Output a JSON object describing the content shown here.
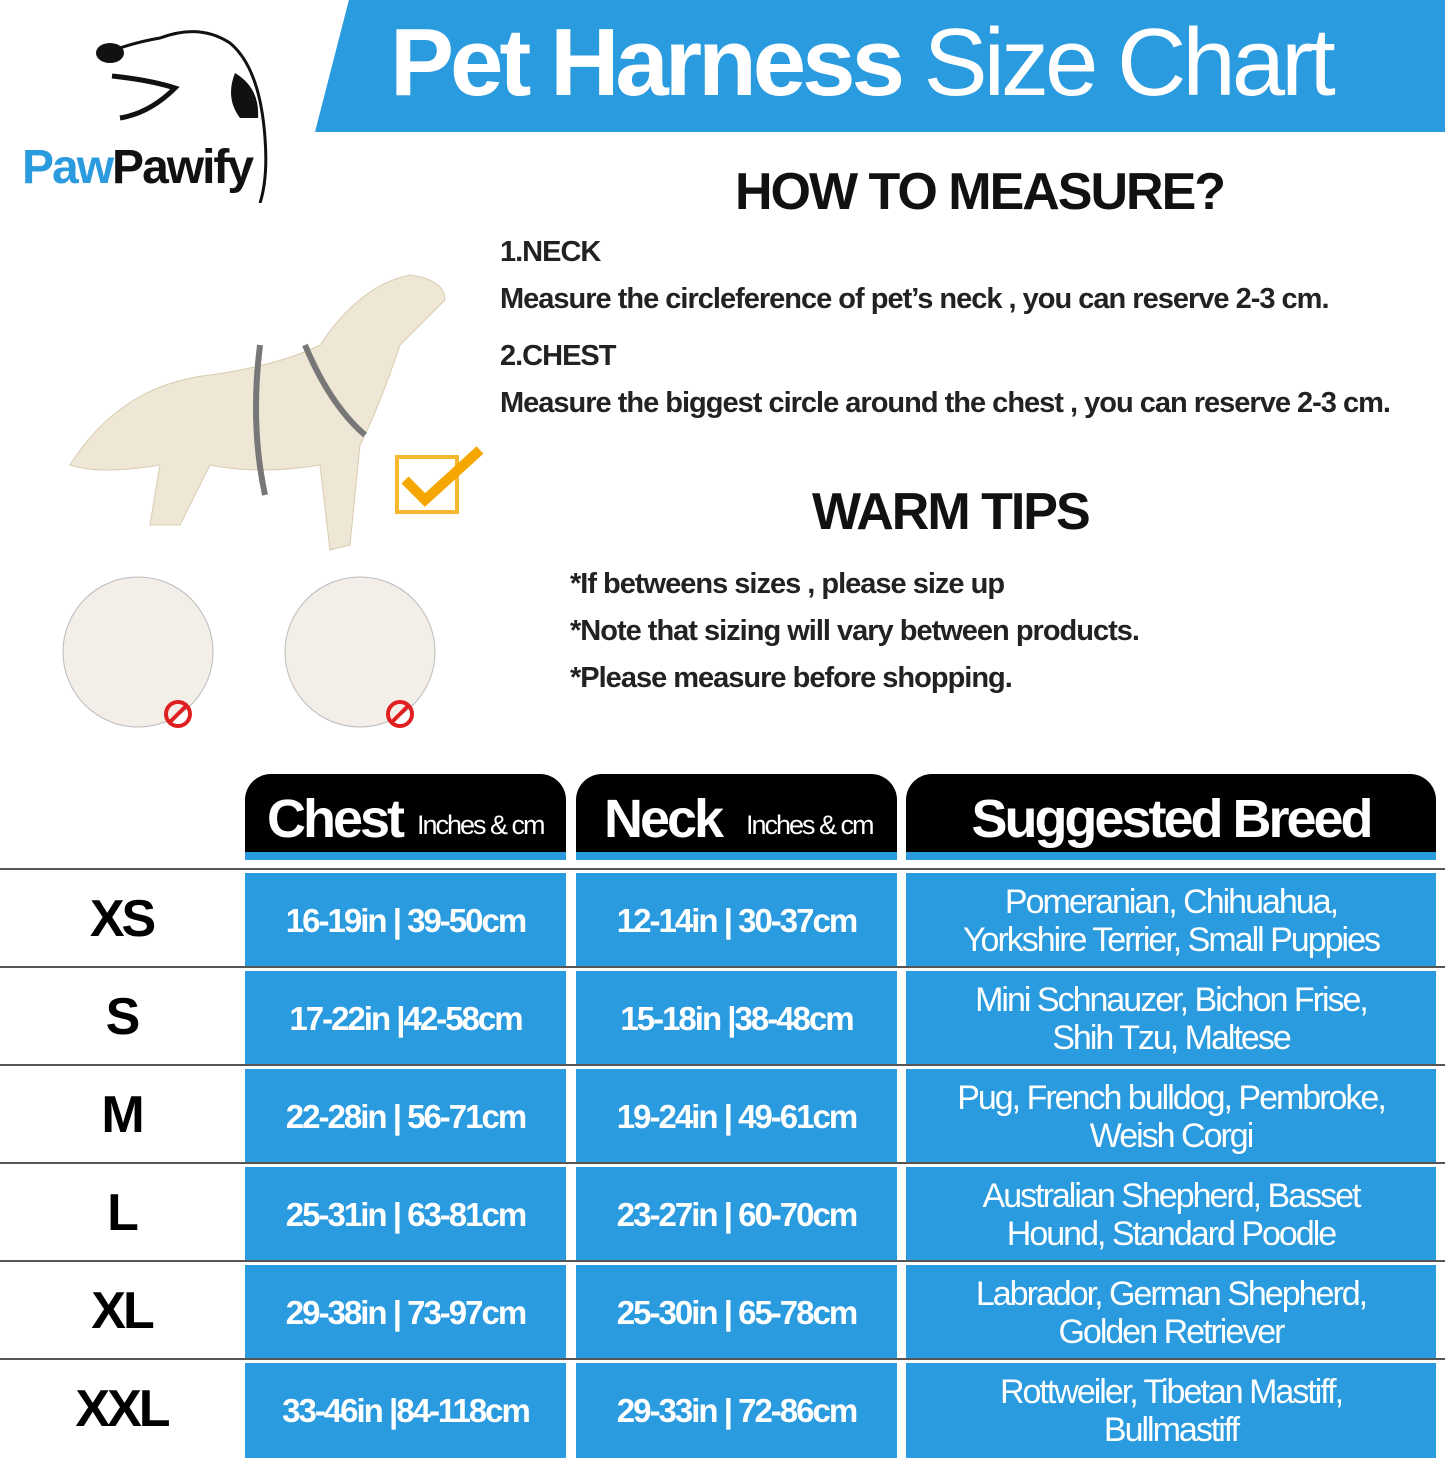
{
  "brand": {
    "part1": "Paw",
    "part2": "Pawify",
    "color1": "#2b9be0",
    "color2": "#111111"
  },
  "title": {
    "bold": "Pet Harness",
    "light": "Size Chart"
  },
  "colors": {
    "accent": "#2b9be0",
    "header": "#000000"
  },
  "measure": {
    "heading": "HOW TO MEASURE?",
    "neck_label": "1.NECK",
    "neck_text": "Measure the circleference of pet’s neck , you can reserve 2-3 cm.",
    "chest_label": "2.CHEST",
    "chest_text": "Measure the biggest circle around the chest , you can reserve 2-3 cm."
  },
  "tips": {
    "heading": "WARM TIPS",
    "items": [
      "*If betweens sizes , please size up",
      "*Note that sizing will vary between products.",
      "*Please measure before shopping."
    ]
  },
  "table": {
    "headers": {
      "chest": "Chest",
      "chest_unit": "Inches & cm",
      "neck": "Neck",
      "neck_unit": "Inches & cm",
      "breed": "Suggested Breed"
    },
    "rows": [
      {
        "size": "XS",
        "chest": "16-19in | 39-50cm",
        "neck": "12-14in | 30-37cm",
        "breed": "Pomeranian, Chihuahua, Yorkshire Terrier, Small Puppies"
      },
      {
        "size": "S",
        "chest": "17-22in |42-58cm",
        "neck": "15-18in |38-48cm",
        "breed": "Mini Schnauzer, Bichon Frise, Shih Tzu, Maltese"
      },
      {
        "size": "M",
        "chest": "22-28in | 56-71cm",
        "neck": "19-24in | 49-61cm",
        "breed": "Pug, French bulldog, Pembroke, Weish Corgi"
      },
      {
        "size": "L",
        "chest": "25-31in | 63-81cm",
        "neck": "23-27in | 60-70cm",
        "breed": "Australian Shepherd, Basset Hound, Standard Poodle"
      },
      {
        "size": "XL",
        "chest": "29-38in | 73-97cm",
        "neck": "25-30in | 65-78cm",
        "breed": "Labrador, German Shepherd, Golden Retriever"
      },
      {
        "size": "XXL",
        "chest": "33-46in |84-118cm",
        "neck": "29-33in | 72-86cm",
        "breed": "Rottweiler, Tibetan Mastiff, Bullmastiff"
      }
    ]
  }
}
